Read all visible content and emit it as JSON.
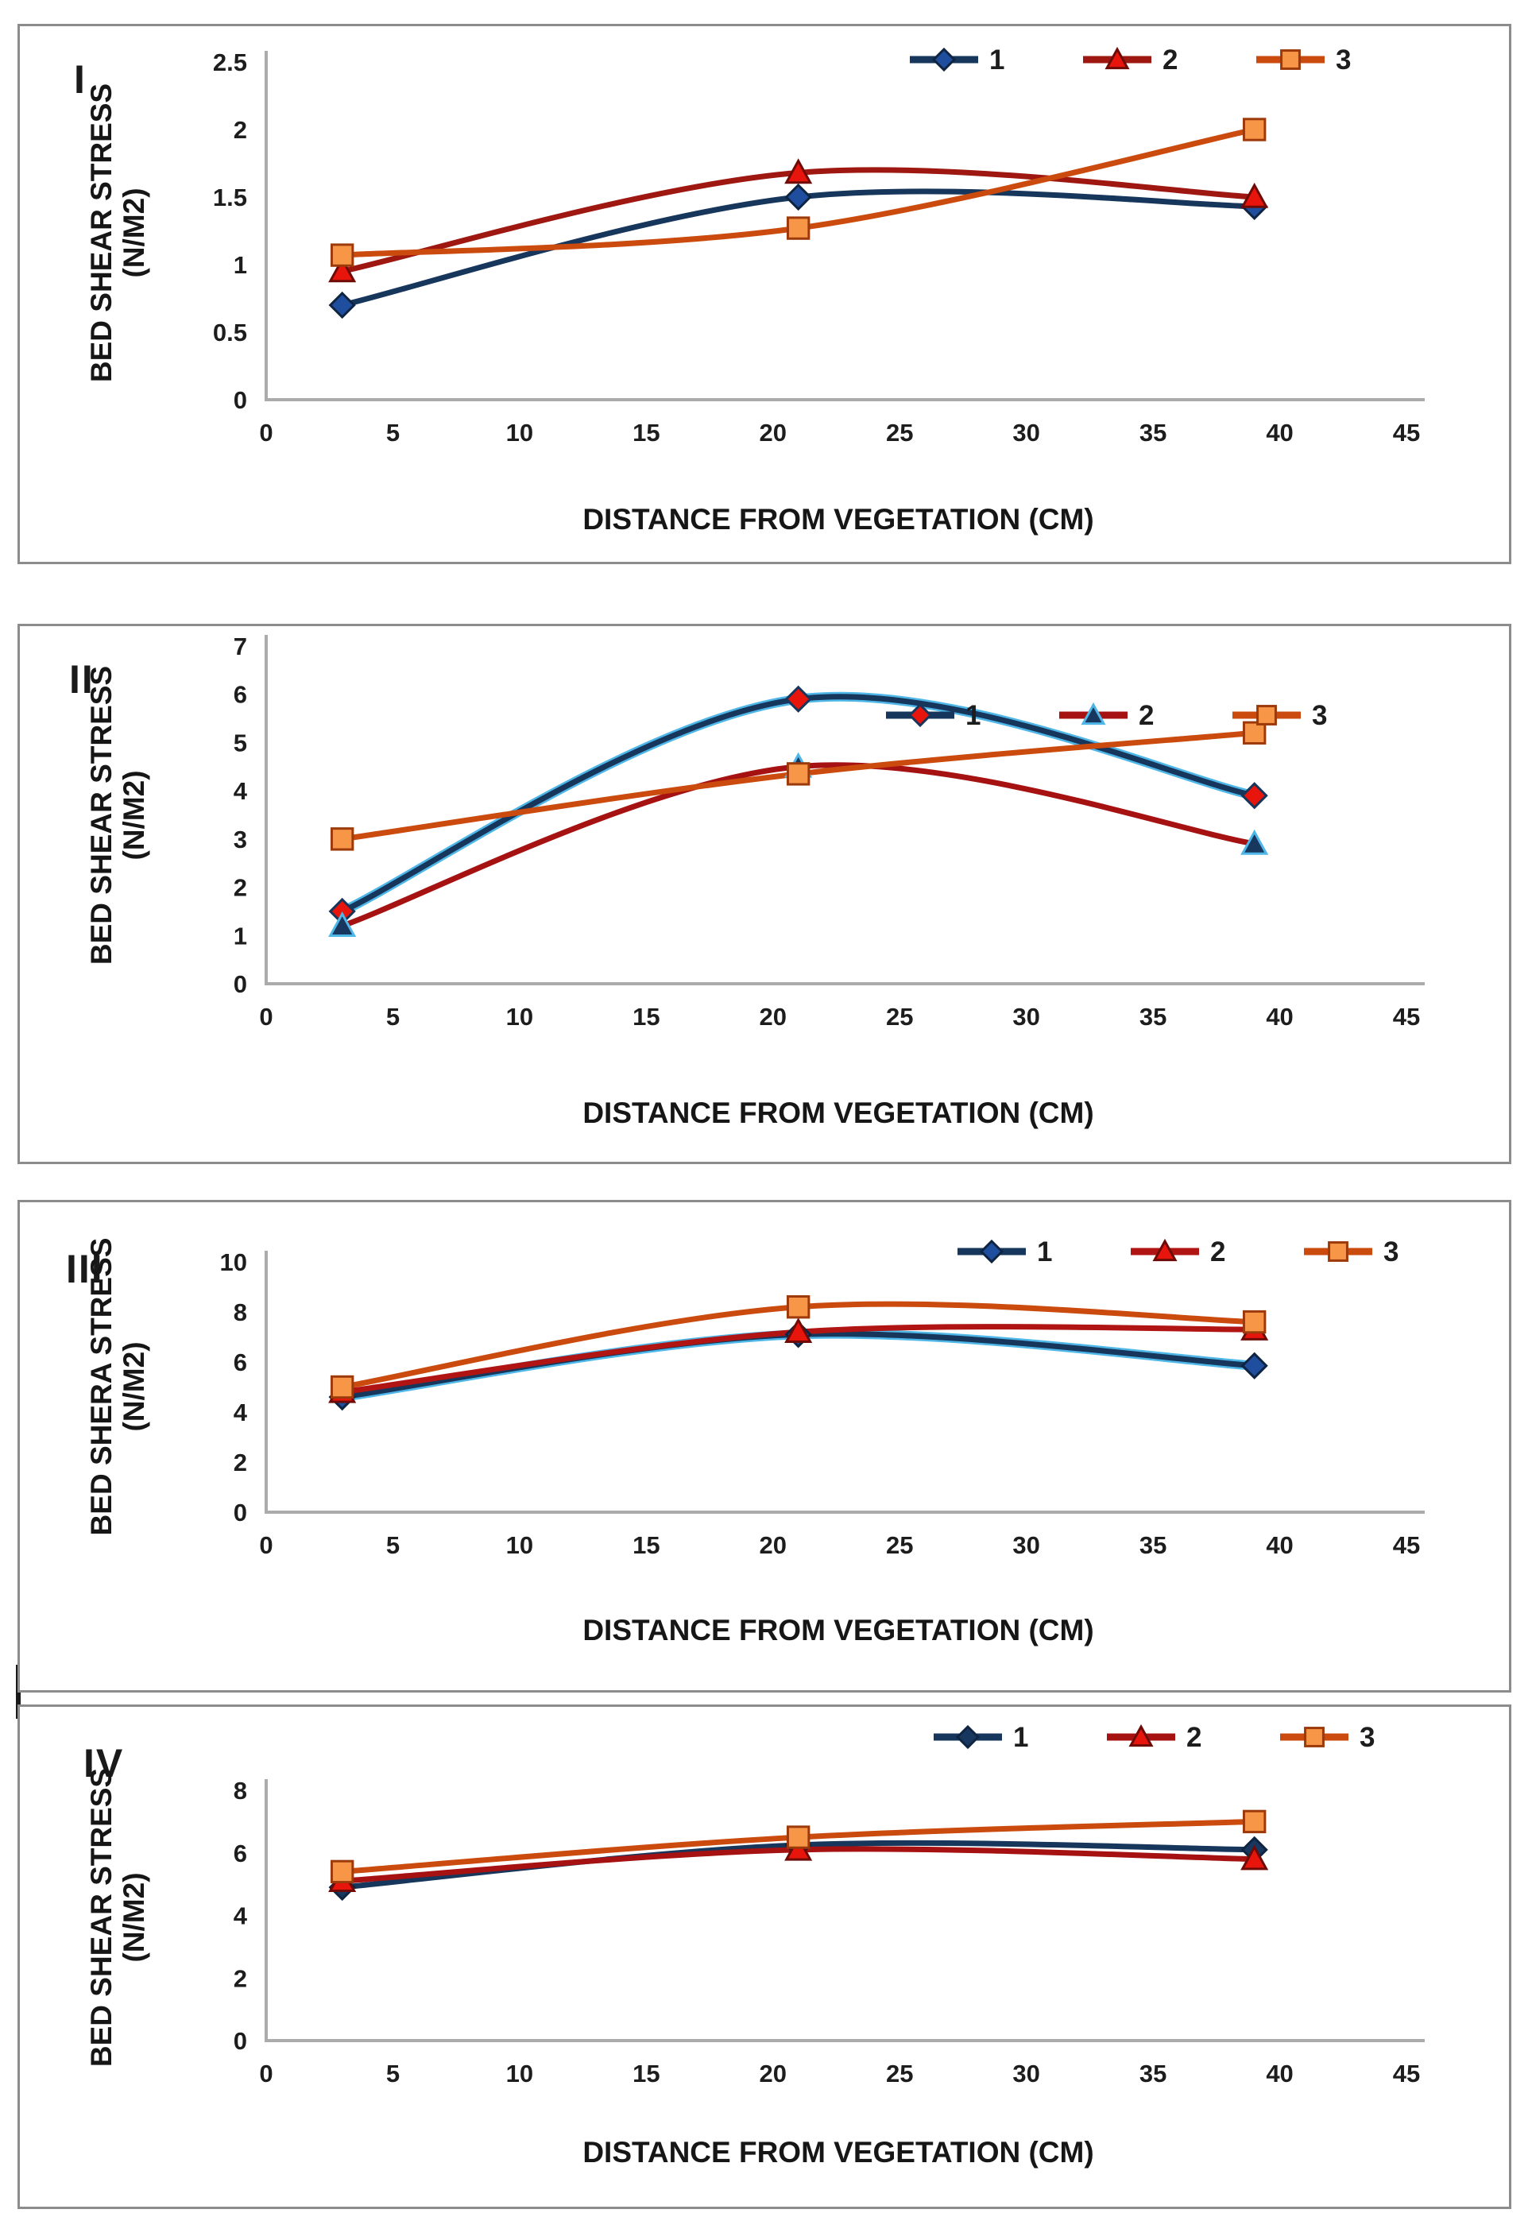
{
  "figure": {
    "background_color": "#ffffff",
    "panel_border_color": "#8c8c8c",
    "axis_line_color": "#ababab",
    "text_color": "#1a1a1a"
  },
  "chart_data": [
    {
      "panel": "I",
      "roman": "I",
      "type": "line",
      "ylabel": "BED SHEAR STRESS (N/M2)",
      "ylabel_line1": "BED SHEAR STRESS",
      "ylabel_line2": "(N/M2)",
      "xlabel": "DISTANCE FROM VEGETATION (CM)",
      "xlim": [
        0,
        45
      ],
      "ylim": [
        0,
        2.5
      ],
      "xticks": [
        0,
        5,
        10,
        15,
        20,
        25,
        30,
        35,
        40,
        45
      ],
      "yticks": [
        0,
        0.5,
        1,
        1.5,
        2,
        2.5
      ],
      "grid": false,
      "legend_position": "top-right",
      "x": [
        3,
        21,
        39
      ],
      "series": [
        {
          "name": "1",
          "marker": "diamond",
          "values": [
            0.7,
            1.5,
            1.43
          ],
          "line_color": "#16365c",
          "marker_fill": "#1f4e9e",
          "marker_stroke": "#0f2440"
        },
        {
          "name": "2",
          "marker": "triangle",
          "values": [
            0.95,
            1.68,
            1.5
          ],
          "line_color": "#9e1710",
          "marker_fill": "#e8150d",
          "marker_stroke": "#6e0b06"
        },
        {
          "name": "3",
          "marker": "square",
          "values": [
            1.07,
            1.27,
            2.0
          ],
          "line_color": "#cb4a0e",
          "marker_fill": "#f79646",
          "marker_stroke": "#9c3a0c"
        }
      ]
    },
    {
      "panel": "II",
      "roman": "II",
      "type": "line",
      "ylabel": "BED SHEAR STRESS (N/M2)",
      "ylabel_line1": "BED SHEAR STRESS",
      "ylabel_line2": "(N/M2)",
      "xlabel": "DISTANCE FROM VEGETATION (CM)",
      "xlim": [
        0,
        45
      ],
      "ylim": [
        0,
        7
      ],
      "xticks": [
        0,
        5,
        10,
        15,
        20,
        25,
        30,
        35,
        40,
        45
      ],
      "yticks": [
        0,
        1,
        2,
        3,
        4,
        5,
        6,
        7
      ],
      "grid": false,
      "legend_position": "top-right",
      "x": [
        3,
        21,
        39
      ],
      "series": [
        {
          "name": "1",
          "marker": "diamond",
          "values": [
            1.5,
            5.9,
            3.9
          ],
          "line_color": "#16365c",
          "underlay_color": "#4fb7e8",
          "marker_fill": "#e8150d",
          "marker_stroke": "#16365c"
        },
        {
          "name": "2",
          "marker": "triangle",
          "values": [
            1.2,
            4.5,
            2.9
          ],
          "line_color": "#a61111",
          "marker_fill": "#17375e",
          "marker_stroke": "#4fb7e8"
        },
        {
          "name": "3",
          "marker": "square",
          "values": [
            3.0,
            4.35,
            5.2
          ],
          "line_color": "#cb4a0e",
          "marker_fill": "#f79646",
          "marker_stroke": "#9c3a0c"
        }
      ]
    },
    {
      "panel": "III",
      "roman": "III",
      "type": "line",
      "ylabel": "BED SHERA STRESS (N/M2)",
      "ylabel_line1": "BED SHERA STRESS",
      "ylabel_line2": "(N/M2)",
      "xlabel": "DISTANCE FROM VEGETATION (CM)",
      "xlim": [
        0,
        45
      ],
      "ylim": [
        0,
        10
      ],
      "xticks": [
        0,
        5,
        10,
        15,
        20,
        25,
        30,
        35,
        40,
        45
      ],
      "yticks": [
        0,
        2,
        4,
        6,
        8,
        10
      ],
      "grid": false,
      "legend_position": "top-right",
      "x": [
        3,
        21,
        39
      ],
      "series": [
        {
          "name": "1",
          "marker": "diamond",
          "values": [
            4.6,
            7.1,
            5.85
          ],
          "line_color": "#16365c",
          "underlay_color": "#4fb7e8",
          "marker_fill": "#1f4e9e",
          "marker_stroke": "#0f2440"
        },
        {
          "name": "2",
          "marker": "triangle",
          "values": [
            4.8,
            7.2,
            7.3
          ],
          "line_color": "#b01513",
          "marker_fill": "#e8150d",
          "marker_stroke": "#6e0b06"
        },
        {
          "name": "3",
          "marker": "square",
          "values": [
            5.0,
            8.2,
            7.6
          ],
          "line_color": "#cb4a0e",
          "marker_fill": "#f79646",
          "marker_stroke": "#9c3a0c"
        }
      ]
    },
    {
      "panel": "IV",
      "roman": "IV",
      "type": "line",
      "ylabel": "BED SHEAR STRESS (N/M2)",
      "ylabel_line1": "BED SHEAR STRESS",
      "ylabel_line2": "(N/M2)",
      "xlabel": "DISTANCE FROM VEGETATION (CM)",
      "xlim": [
        0,
        45
      ],
      "ylim": [
        0,
        8
      ],
      "xticks": [
        0,
        5,
        10,
        15,
        20,
        25,
        30,
        35,
        40,
        45
      ],
      "yticks": [
        0,
        2,
        4,
        6,
        8
      ],
      "grid": false,
      "legend_position": "top-right",
      "x": [
        3,
        21,
        39
      ],
      "series": [
        {
          "name": "1",
          "marker": "diamond",
          "values": [
            4.9,
            6.25,
            6.1
          ],
          "line_color": "#16365c",
          "marker_fill": "#17375e",
          "marker_stroke": "#0f2440"
        },
        {
          "name": "2",
          "marker": "triangle",
          "values": [
            5.1,
            6.1,
            5.8
          ],
          "line_color": "#a61111",
          "marker_fill": "#e8150d",
          "marker_stroke": "#6e0b06"
        },
        {
          "name": "3",
          "marker": "square",
          "values": [
            5.4,
            6.5,
            7.0
          ],
          "line_color": "#cb4a0e",
          "marker_fill": "#f79646",
          "marker_stroke": "#9c3a0c"
        }
      ]
    }
  ]
}
